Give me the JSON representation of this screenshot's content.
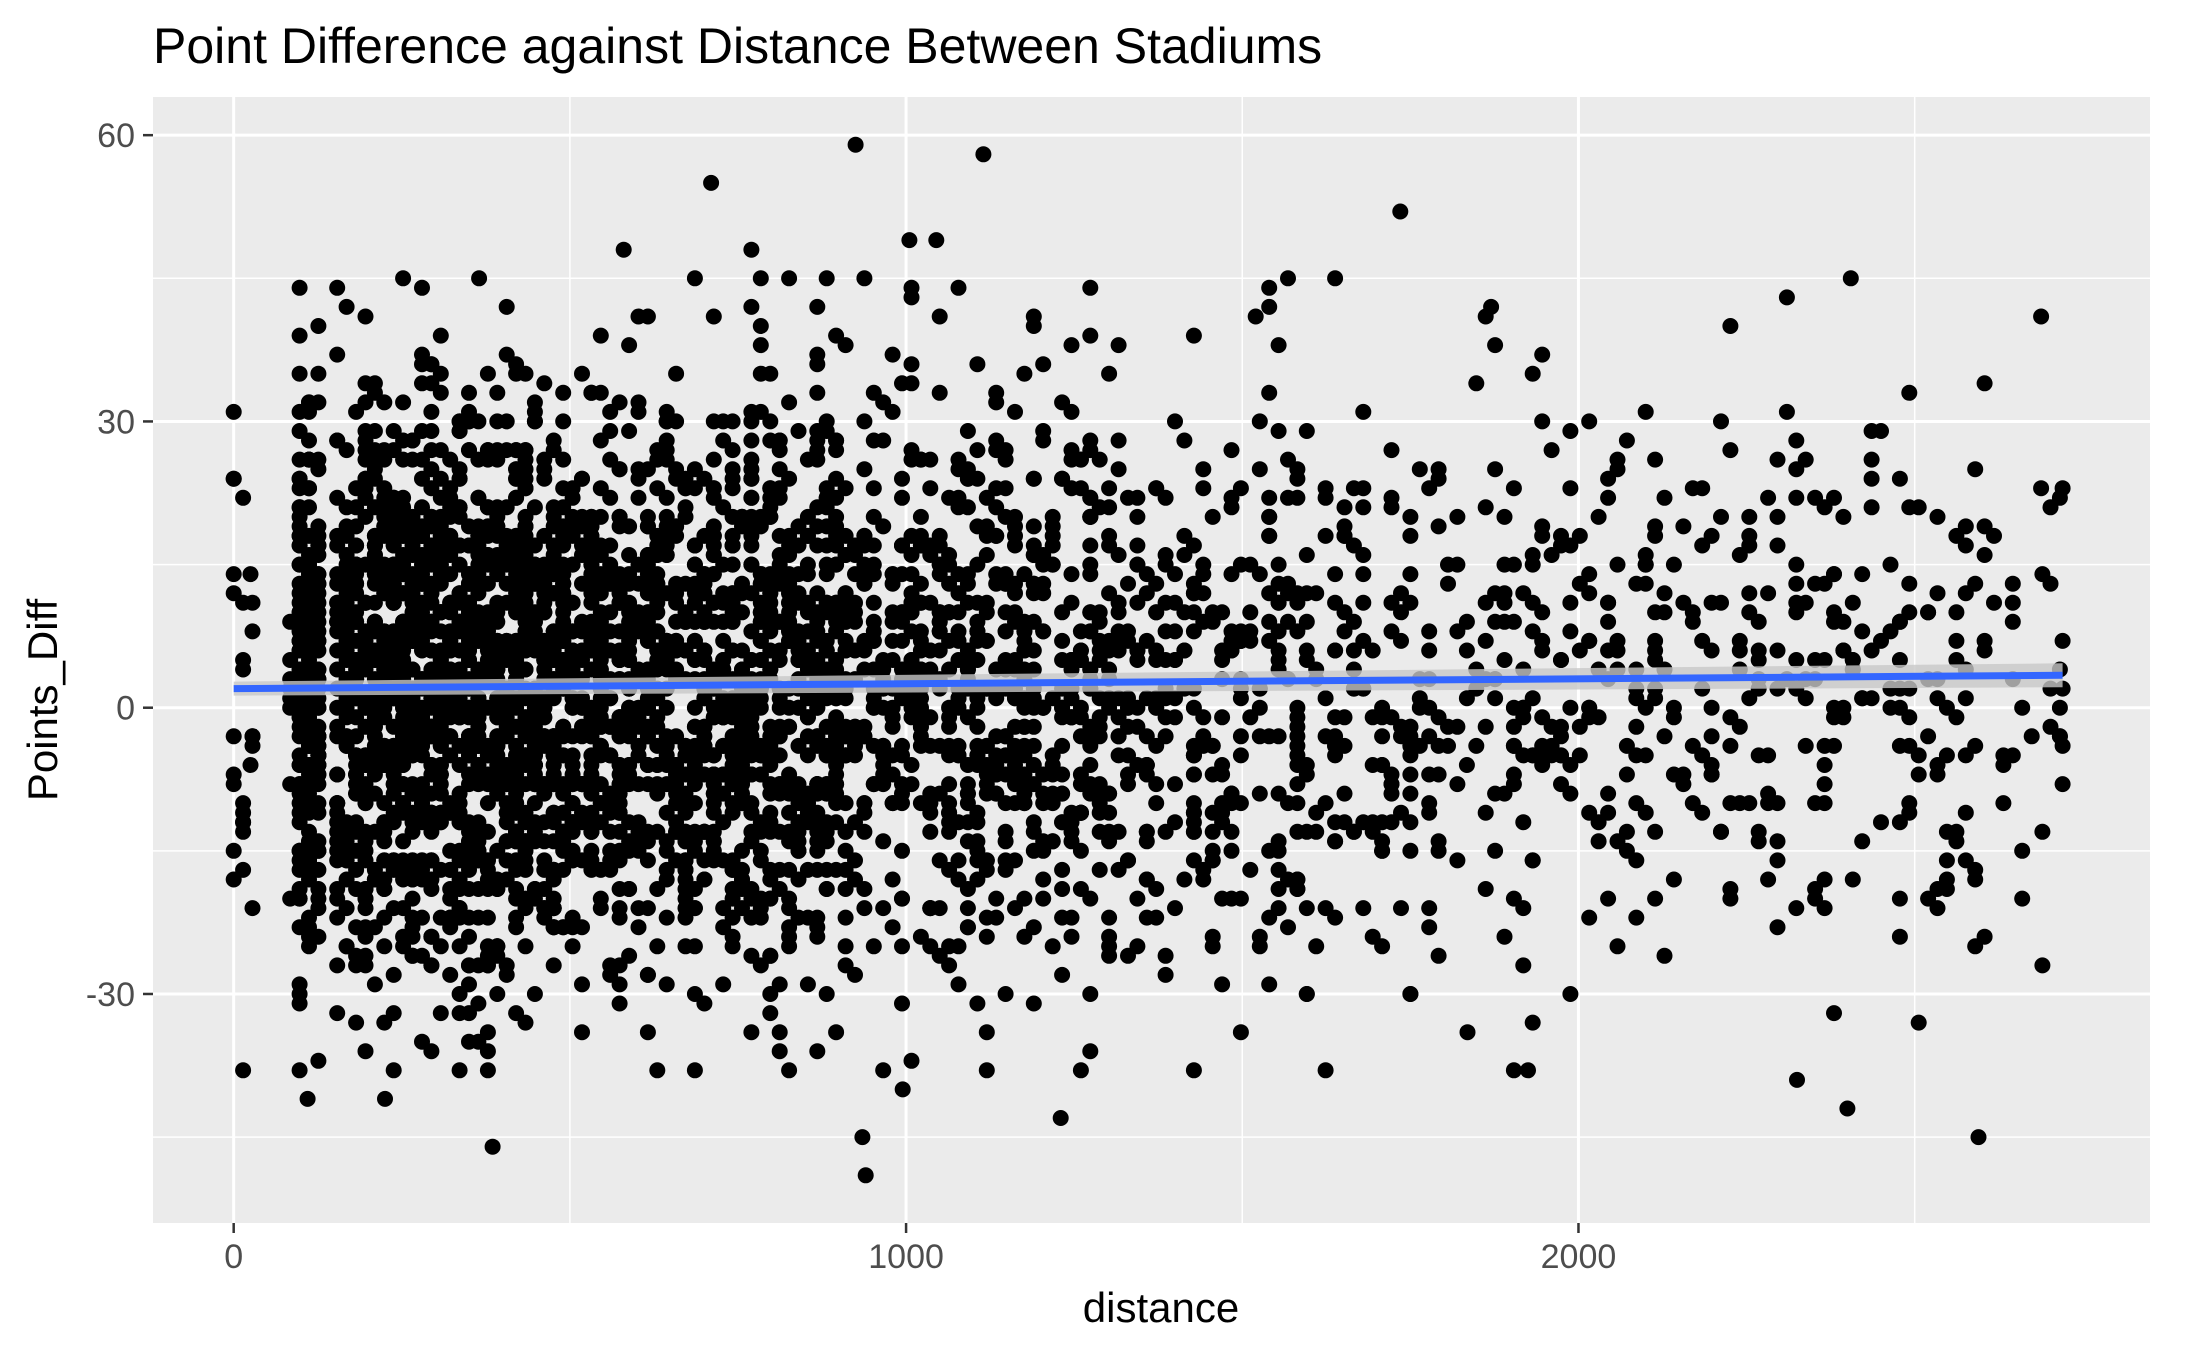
{
  "chart_data": {
    "type": "scatter",
    "title": "Point Difference against Distance Between Stadiums",
    "xlabel": "distance",
    "ylabel": "Points_Diff",
    "xlim": [
      -120,
      2850
    ],
    "ylim": [
      -54,
      64
    ],
    "x_ticks": [
      0,
      1000,
      2000
    ],
    "x_tick_labels": [
      "0",
      "1000",
      "2000"
    ],
    "x_minor_ticks": [
      500,
      1500,
      2500
    ],
    "y_ticks": [
      -30,
      0,
      30,
      60
    ],
    "y_tick_labels": [
      "-30",
      "0",
      "30",
      "60"
    ],
    "y_minor_ticks": [
      -45,
      -15,
      15,
      45
    ],
    "grid": true,
    "legend": "none",
    "colors": {
      "panel_background": "#ebebeb",
      "grid": "#ffffff",
      "points": "#000000",
      "trend_line": "#3366ff",
      "confidence_band": "#c8c8c8"
    },
    "trend_line": {
      "method": "linear",
      "x": [
        0,
        2720
      ],
      "y": [
        2.0,
        3.4
      ]
    },
    "outliers": [
      {
        "x": 925,
        "y": 59
      },
      {
        "x": 1115,
        "y": 58
      },
      {
        "x": 710,
        "y": 55
      },
      {
        "x": 1735,
        "y": 52
      },
      {
        "x": 1005,
        "y": 49
      },
      {
        "x": 1045,
        "y": 49
      },
      {
        "x": 580,
        "y": 48
      },
      {
        "x": 770,
        "y": 48
      },
      {
        "x": 2405,
        "y": 45
      },
      {
        "x": 365,
        "y": 45
      },
      {
        "x": 935,
        "y": -45
      },
      {
        "x": 2595,
        "y": -45
      },
      {
        "x": 385,
        "y": -46
      },
      {
        "x": 940,
        "y": -49
      },
      {
        "x": 2400,
        "y": -42
      },
      {
        "x": 1230,
        "y": -43
      },
      {
        "x": 110,
        "y": -41
      },
      {
        "x": 225,
        "y": -41
      },
      {
        "x": 995,
        "y": -40
      },
      {
        "x": 2325,
        "y": -39
      },
      {
        "x": 2720,
        "y": 23
      },
      {
        "x": 2720,
        "y": 7
      },
      {
        "x": 2720,
        "y": 2
      },
      {
        "x": 2720,
        "y": -4
      },
      {
        "x": 2720,
        "y": -8
      },
      {
        "x": 2690,
        "y": 14
      },
      {
        "x": 2690,
        "y": -13
      },
      {
        "x": 2690,
        "y": -27
      },
      {
        "x": 0,
        "y": 31
      },
      {
        "x": 0,
        "y": -15
      },
      {
        "x": 0,
        "y": 12
      },
      {
        "x": 0,
        "y": -3
      },
      {
        "x": 25,
        "y": 14
      },
      {
        "x": 25,
        "y": -6
      },
      {
        "x": 1870,
        "y": 42
      },
      {
        "x": 2310,
        "y": 43
      },
      {
        "x": 1520,
        "y": 41
      },
      {
        "x": 1925,
        "y": -38
      },
      {
        "x": 1835,
        "y": -34
      }
    ],
    "distribution": {
      "description_free": true,
      "n_points": 4200,
      "mean_y": 2.5,
      "sd_y": 15
    }
  }
}
